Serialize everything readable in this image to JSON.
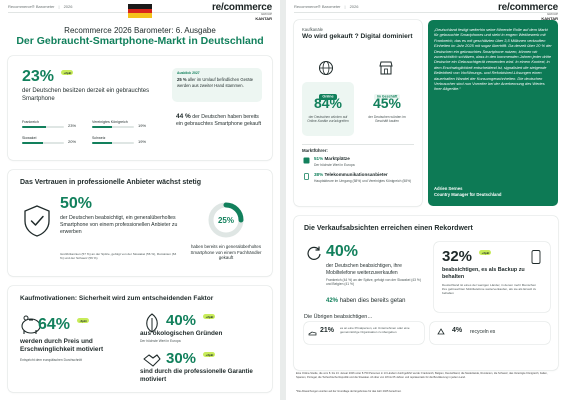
{
  "left": {
    "topbar": {
      "brand": "Recommerce® Barometer",
      "year": "2026"
    },
    "flag_colors": [
      "#1a1a1a",
      "#d9261c",
      "#f4c21b"
    ],
    "logo": {
      "main": "re/commerce",
      "sub": "GROUP",
      "partner": "KANTAR"
    },
    "eyebrow": "Recommerce 2026 Barometer: 6. Ausgabe",
    "title": "Der Gebraucht-Smartphone-Markt in Deutschland",
    "ownership": {
      "value": "23%",
      "badge": "+2pkt",
      "text": "der Deutschen besitzen derzeit ein gebrauchtes Smartphone",
      "bars": [
        {
          "label": "Frankreich",
          "value": "23%",
          "pct": 23
        },
        {
          "label": "Vereinigtes Königreich",
          "value": "19%",
          "pct": 19
        },
        {
          "label": "Slowakei",
          "value": "20%",
          "pct": 20
        },
        {
          "label": "Schweiz",
          "value": "19%",
          "pct": 19
        }
      ]
    },
    "august": {
      "title": "Ausblick 2027",
      "value": "25 %",
      "text": "aller im Umlauf befindlichen Geräte werden aus zweiter Hand stammen."
    },
    "bought": {
      "value": "44 %",
      "text": "der Deutschen haben bereits ein gebrauchtes Smartphone gekauft"
    },
    "trust": {
      "title": "Das Vertrauen in professionelle Anbieter wächst stetig",
      "value": "50%",
      "text": "der Deutschen beabsichtigt, ein generalüberholtes Smartphone von einem professionellen Anbieter zu erwerben",
      "detail": "Großbritannien (57 %) an der Spitze, gefolgt von der Slowakei (56 %), Rumänien (63 %) und der Schweiz (56 %)",
      "donut_value": "25%",
      "donut_pct": 25,
      "donut_text": "haben bereits ein generalüberholtes Smartphone von einem Fachhändler gekauft"
    },
    "motivation": {
      "title": "Kaufmotivationen: Sicherheit wird zum entscheidenden Faktor",
      "price_value": "64%",
      "price_badge": "-2pkt",
      "price_text": "werden durch Preis und Erschwinglichkeit motiviert",
      "price_sub": "Entspricht dem europäischen Durchschnitt",
      "eco_value": "40%",
      "eco_badge": "+2pkt",
      "eco_text": "aus ökologischen Gründen",
      "eco_sub": "Der höchste Wert in Europa",
      "warranty_value": "30%",
      "warranty_badge": "+3pkt",
      "warranty_text": "sind durch die professionelle Garantie motiviert"
    }
  },
  "right": {
    "topbar": {
      "brand": "Recommerce® Barometer",
      "year": "2026"
    },
    "logo": {
      "main": "re/commerce",
      "sub": "GROUP",
      "partner": "KANTAR"
    },
    "channels": {
      "eyebrow": "Kaufkanäle",
      "title": "Wo wird gekauft ? Digital dominiert",
      "online_label": "Online",
      "online_value": "84%",
      "online_text": "der Deutschen würden auf Online-Kanäle zurückgreifen",
      "store_label": "Im Geschäft",
      "store_value": "45%",
      "store_text": "der Deutschen würden im Geschäft kaufen",
      "marketplace_title": "Marktführer:",
      "marketplace_value": "51%",
      "marketplace_label": "Marktplätze",
      "marketplace_sub": "Der höchste Wert in Europa",
      "telco_value": "38%",
      "telco_label": "Telekommunikationsanbieter",
      "telco_sub": "Hauptakteure im Umgang (58%) und Vereinigtes Königreich (58%)"
    },
    "quote": {
      "text": "„Deutschland festigt weiterhin seine führende Rolle auf dem Markt für gebrauchte Smartphones und steht in engem Wettbewerb mit Frankreich, das es mit geschätzten über 3,5 Millionen verkauften Einheiten im Jahr 2025 mit sogar übertrifft. Da derzeit über 20 % der Deutschen ein gebrauchtes Smartphone nutzen, können wir zuversichtlich schätzen, dass in den kommenden Jahren jeder dritte Deutsche ein Gebrauchtgerät verwenden wird. In einem Kontext, in dem Erschwinglichkeit entscheidend ist, signalisiert die steigende Beliebtheit von Vorführungs- und Refurbished-Lösungen einen dauerhaften Wandel der Konsumgewohnheiten. Die deutschen Verbraucher sind nun Vorreiter bei der Anerkennung des Wertes ihrer Altgeräte.“",
      "author": "Adrien Sernes",
      "role": "Country Manager für Deutschland"
    },
    "sales": {
      "title": "Die Verkaufsabsichten erreichen einen Rekordwert",
      "value": "40%",
      "text": "der Deutschen beabsichtigen, ihre Mobiltelefone weiterzuverkaufen",
      "detail": "Frankreich (44 %) an der Spitze, gefolgt von der Slowakei (43 %) und Belgien (41 %)",
      "done_value": "42%",
      "done_text": "haben dies bereits getan",
      "others_title": "Die Übrigen beabsichtigen…",
      "other1_value": "21%",
      "other1_text": "es an eine Privatperson, ein Unternehmen oder eine gemeinnützige Organisation zu übergeben",
      "other2_value": "4%",
      "other2_text": "recyceln es",
      "backup_value": "32%",
      "backup_badge": "+3pkt",
      "backup_text": "beabsichtigen, es als Backup zu behalten",
      "backup_sub": "Deutschland ist eines der wenigen Länder, in denen mehr Menschen ihre gebrauchten Mobiltelefone weiterverkaufen, als sie als Ersatz zu behalten"
    },
    "footnote": "Eine Online-Studie, die vom 8. bis 13. Januar 2026 unter 8.750 Personen in 13 Ländern durchgeführt wurde: Frankreich, Belgien, Deutschland, die Niederlande, Rumänien, die Schweiz, das Vereinigte Königreich, Italien, Spanien, Portugal, die Tschechische Republik und die Slowakei. Ab über von 18 bis 65 Jahren und repräsentativ für die Bevölkerung in jedem Land.",
    "footnote2": "*Die Abweichungen wurden auf der Grundlage der Ergebnisse für das Jahr 2025 berechnet."
  }
}
